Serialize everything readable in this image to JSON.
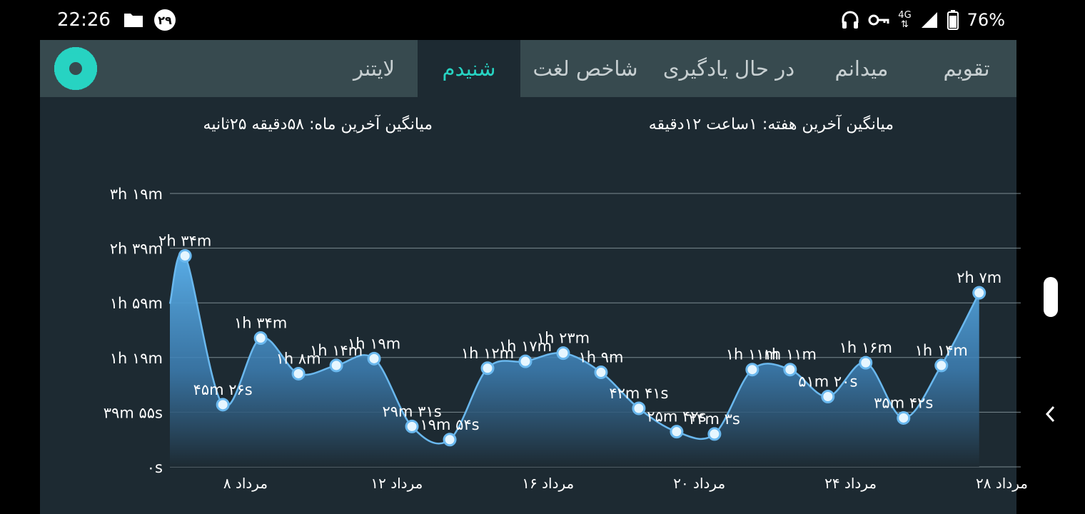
{
  "status_bar": {
    "time": "22:26",
    "notification_badge": "۲۹",
    "network": "4G",
    "battery": "76%",
    "icons": [
      "folder-icon",
      "headphones-icon",
      "vpn-key-icon",
      "signal-icon",
      "battery-icon"
    ]
  },
  "tabs": [
    {
      "label": "تقویم",
      "active": false
    },
    {
      "label": "میدانم",
      "active": false
    },
    {
      "label": "در حال یادگیری",
      "active": false
    },
    {
      "label": "شاخص لغت",
      "active": false
    },
    {
      "label": "شنیدم",
      "active": true
    },
    {
      "label": "لایتنر",
      "active": false
    }
  ],
  "settings_icon": "gear-icon",
  "stats": {
    "week_avg": "میانگین آخرین هفته: ۱ساعت ۱۲دقیقه",
    "month_avg": "میانگین آخرین ماه: ۵۸دقیقه ۲۵ثانیه"
  },
  "colors": {
    "accent": "#27d3c2",
    "tab_bar": "#374a4f",
    "background": "#1d2a32",
    "line": "#6ab8ee",
    "fill_top": "#5aaee8"
  },
  "chart_data": {
    "type": "area",
    "y_unit": "minutes",
    "ylim": [
      0,
      199
    ],
    "y_ticks": [
      {
        "value": 0,
        "label": "۰s"
      },
      {
        "value": 39.9,
        "label": "۳۹m ۵۵s"
      },
      {
        "value": 79.8,
        "label": "۱h ۱۹m"
      },
      {
        "value": 119.7,
        "label": "۱h ۵۹m"
      },
      {
        "value": 159.6,
        "label": "۲h ۳۹m"
      },
      {
        "value": 199.5,
        "label": "۳h ۱۹m"
      }
    ],
    "x_range": [
      6,
      28.5
    ],
    "x_ticks": [
      {
        "value": 8,
        "label": "۸ مرداد"
      },
      {
        "value": 12,
        "label": "۱۲ مرداد"
      },
      {
        "value": 16,
        "label": "۱۶ مرداد"
      },
      {
        "value": 20,
        "label": "۲۰ مرداد"
      },
      {
        "value": 24,
        "label": "۲۴ مرداد"
      },
      {
        "value": 28,
        "label": "۲۸ مرداد"
      }
    ],
    "start_value": 119,
    "points": [
      {
        "day": 6.4,
        "value": 154,
        "label": "۲h ۳۴m"
      },
      {
        "day": 7.4,
        "value": 45.4,
        "label": "۴۵m ۲۶s"
      },
      {
        "day": 8.4,
        "value": 94,
        "label": "۱h ۳۴m"
      },
      {
        "day": 9.4,
        "value": 68,
        "label": "۱h ۸m"
      },
      {
        "day": 10.4,
        "value": 74,
        "label": "۱h ۱۴m"
      },
      {
        "day": 11.4,
        "value": 79,
        "label": "۱h ۱۹m"
      },
      {
        "day": 12.4,
        "value": 29.5,
        "label": "۲۹m ۳۱s"
      },
      {
        "day": 13.4,
        "value": 19.9,
        "label": "۱۹m ۵۴s"
      },
      {
        "day": 14.4,
        "value": 72,
        "label": "۱h ۱۲m"
      },
      {
        "day": 15.4,
        "value": 77,
        "label": "۱h ۱۷m"
      },
      {
        "day": 16.4,
        "value": 83,
        "label": "۱h ۲۳m"
      },
      {
        "day": 17.4,
        "value": 69,
        "label": "۱h ۹m"
      },
      {
        "day": 18.4,
        "value": 42.7,
        "label": "۴۲m ۴۱s"
      },
      {
        "day": 19.4,
        "value": 25.7,
        "label": "۲۵m ۴۲s"
      },
      {
        "day": 20.4,
        "value": 24,
        "label": "۲۴m ۳s"
      },
      {
        "day": 21.4,
        "value": 71,
        "label": "۱h ۱۱m"
      },
      {
        "day": 22.4,
        "value": 71,
        "label": "۱h ۱۱m"
      },
      {
        "day": 23.4,
        "value": 51.3,
        "label": "۵۱m ۲۰s"
      },
      {
        "day": 24.4,
        "value": 76,
        "label": "۱h ۱۶m"
      },
      {
        "day": 25.4,
        "value": 35.7,
        "label": "۳۵m ۴۲s"
      },
      {
        "day": 26.4,
        "value": 74,
        "label": "۱h ۱۴m"
      },
      {
        "day": 27.4,
        "value": 127,
        "label": "۲h ۷m"
      }
    ],
    "grid": true,
    "legend": "none"
  }
}
